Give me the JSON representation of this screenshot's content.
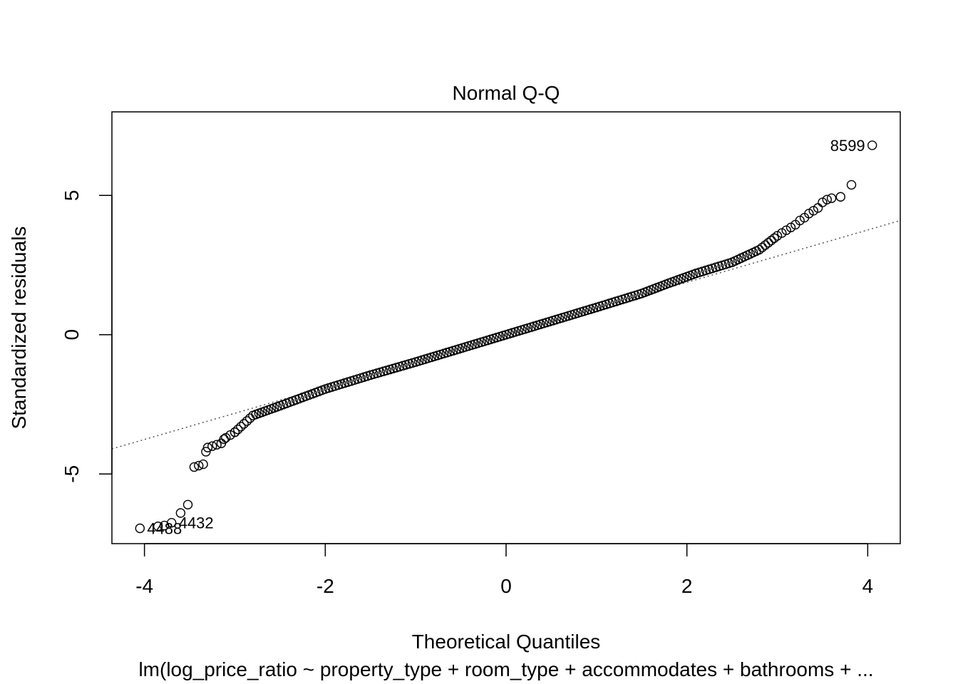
{
  "chart_data": {
    "type": "scatter",
    "title": "Normal Q-Q",
    "xlabel": "Theoretical Quantiles",
    "ylabel": "Standardized residuals",
    "subtitle": "lm(log_price_ratio ~ property_type + room_type + accommodates + bathrooms + ...",
    "xlim": [
      -4.36,
      4.36
    ],
    "ylim": [
      -7.5,
      8.0
    ],
    "xticks": [
      "-4",
      "-2",
      "0",
      "2",
      "4"
    ],
    "yticks": [
      "-5",
      "0",
      "5"
    ],
    "grid": false,
    "legend": "none",
    "reference_line": {
      "intercept": 0.0,
      "slope": 0.94,
      "style": "dotted",
      "color": "#555555"
    },
    "series": [
      {
        "points": [
          [
            -4.05,
            -6.95
          ],
          [
            -3.85,
            -6.88
          ],
          [
            -3.78,
            -6.85
          ],
          [
            -3.7,
            -6.75
          ],
          [
            -3.6,
            -6.4
          ],
          [
            -3.52,
            -6.1
          ],
          [
            -3.45,
            -4.75
          ],
          [
            -3.4,
            -4.7
          ],
          [
            -3.35,
            -4.65
          ],
          [
            -3.32,
            -4.2
          ],
          [
            -3.3,
            -4.05
          ],
          [
            -3.25,
            -4.0
          ],
          [
            -3.2,
            -3.95
          ],
          [
            -3.15,
            -3.9
          ],
          [
            -3.12,
            -3.75
          ],
          [
            -3.1,
            -3.7
          ],
          [
            -3.05,
            -3.6
          ],
          [
            -3.0,
            -3.5
          ],
          [
            3.0,
            3.55
          ],
          [
            3.05,
            3.65
          ],
          [
            3.1,
            3.75
          ],
          [
            3.15,
            3.85
          ],
          [
            3.2,
            3.95
          ],
          [
            3.25,
            4.1
          ],
          [
            3.3,
            4.2
          ],
          [
            3.35,
            4.35
          ],
          [
            3.4,
            4.45
          ],
          [
            3.45,
            4.55
          ],
          [
            3.5,
            4.75
          ],
          [
            3.55,
            4.85
          ],
          [
            3.6,
            4.9
          ],
          [
            3.7,
            4.95
          ],
          [
            3.82,
            5.38
          ],
          [
            4.05,
            6.8
          ]
        ]
      }
    ],
    "labels": [
      {
        "text": "8599",
        "x": 4.05,
        "y": 6.8,
        "side": "left"
      },
      {
        "text": "4488",
        "x": -4.05,
        "y": -6.95,
        "side": "right"
      },
      {
        "text": "4432",
        "x": -3.7,
        "y": -6.75,
        "side": "right"
      }
    ]
  }
}
